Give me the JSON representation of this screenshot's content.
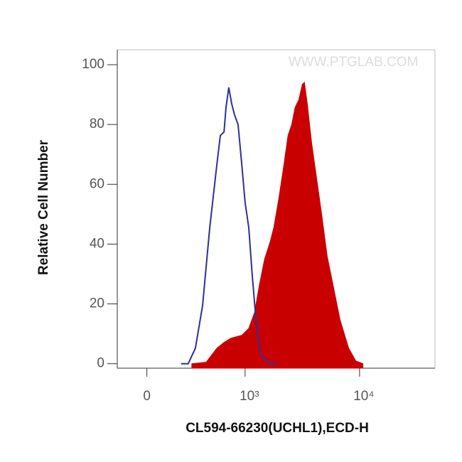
{
  "chart_data": {
    "type": "histogram",
    "xlabel": "CL594-66230(UCHL1),ECD-H",
    "ylabel": "Relative Cell Number",
    "watermark": "WWW.PTGLAB.COM",
    "xscale": "biexponential",
    "xlim": [
      -180,
      45000
    ],
    "ylim": [
      -1.5,
      105
    ],
    "xticks": [
      0,
      {
        "value": 1000,
        "label": "10³"
      },
      {
        "value": 10000,
        "label": "10⁴"
      }
    ],
    "yticks": [
      0,
      20,
      40,
      60,
      80,
      100
    ],
    "series": [
      {
        "color": "#2b2fa0",
        "filled": false,
        "x": [
          212,
          265,
          324,
          390,
          463,
          546,
          590,
          640,
          668,
          709,
          754,
          800,
          864,
          933,
          1002,
          1080,
          1163,
          1250,
          1345,
          1445,
          1670,
          1930
        ],
        "values": [
          0,
          0,
          5.2,
          19.4,
          45.5,
          66.8,
          76.3,
          77.5,
          85.8,
          92.4,
          87,
          83.4,
          79.9,
          66.8,
          53.8,
          45.5,
          28.9,
          14.7,
          5.2,
          1.7,
          0,
          0
        ]
      },
      {
        "color": "#c80000",
        "filled": true,
        "x": [
          294,
          426,
          546,
          640,
          743,
          933,
          1080,
          1215,
          1345,
          1489,
          1670,
          1797,
          1984,
          2166,
          2393,
          2572,
          2762,
          2966,
          3188,
          3326,
          3522,
          3836,
          4239,
          4680,
          5242,
          5875,
          6768,
          8035,
          9274,
          10685
        ],
        "values": [
          0,
          0.5,
          5.2,
          7.1,
          8.5,
          9.5,
          11.8,
          17.1,
          26.5,
          34.8,
          40.8,
          45.5,
          55,
          64.5,
          76.3,
          79.9,
          85.8,
          88.2,
          93.4,
          94.1,
          87,
          73.9,
          62.1,
          50.2,
          36,
          26.5,
          14.7,
          5.2,
          0.9,
          0
        ]
      }
    ]
  }
}
